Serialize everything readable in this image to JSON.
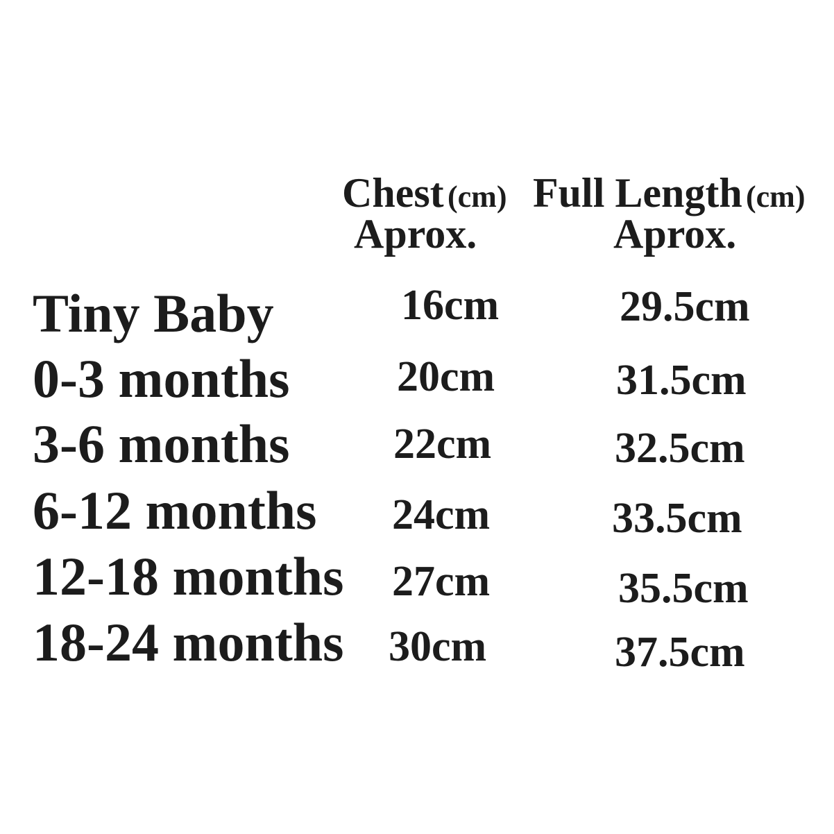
{
  "header": {
    "columns": [
      {
        "name": "Chest",
        "unit": "(cm)",
        "note": "Aprox."
      },
      {
        "name": "Full Length",
        "unit": "(cm)",
        "note": "Aprox."
      }
    ]
  },
  "table": {
    "rows": [
      [
        "Tiny Baby",
        "16cm",
        "29.5cm"
      ],
      [
        "0-3 months",
        "20cm",
        "31.5cm"
      ],
      [
        "3-6 months",
        "22cm",
        "32.5cm"
      ],
      [
        "6-12 months",
        "24cm",
        "33.5cm"
      ],
      [
        "12-18 months",
        "27cm",
        "35.5cm"
      ],
      [
        "18-24 months",
        "30cm",
        "37.5cm"
      ]
    ]
  }
}
